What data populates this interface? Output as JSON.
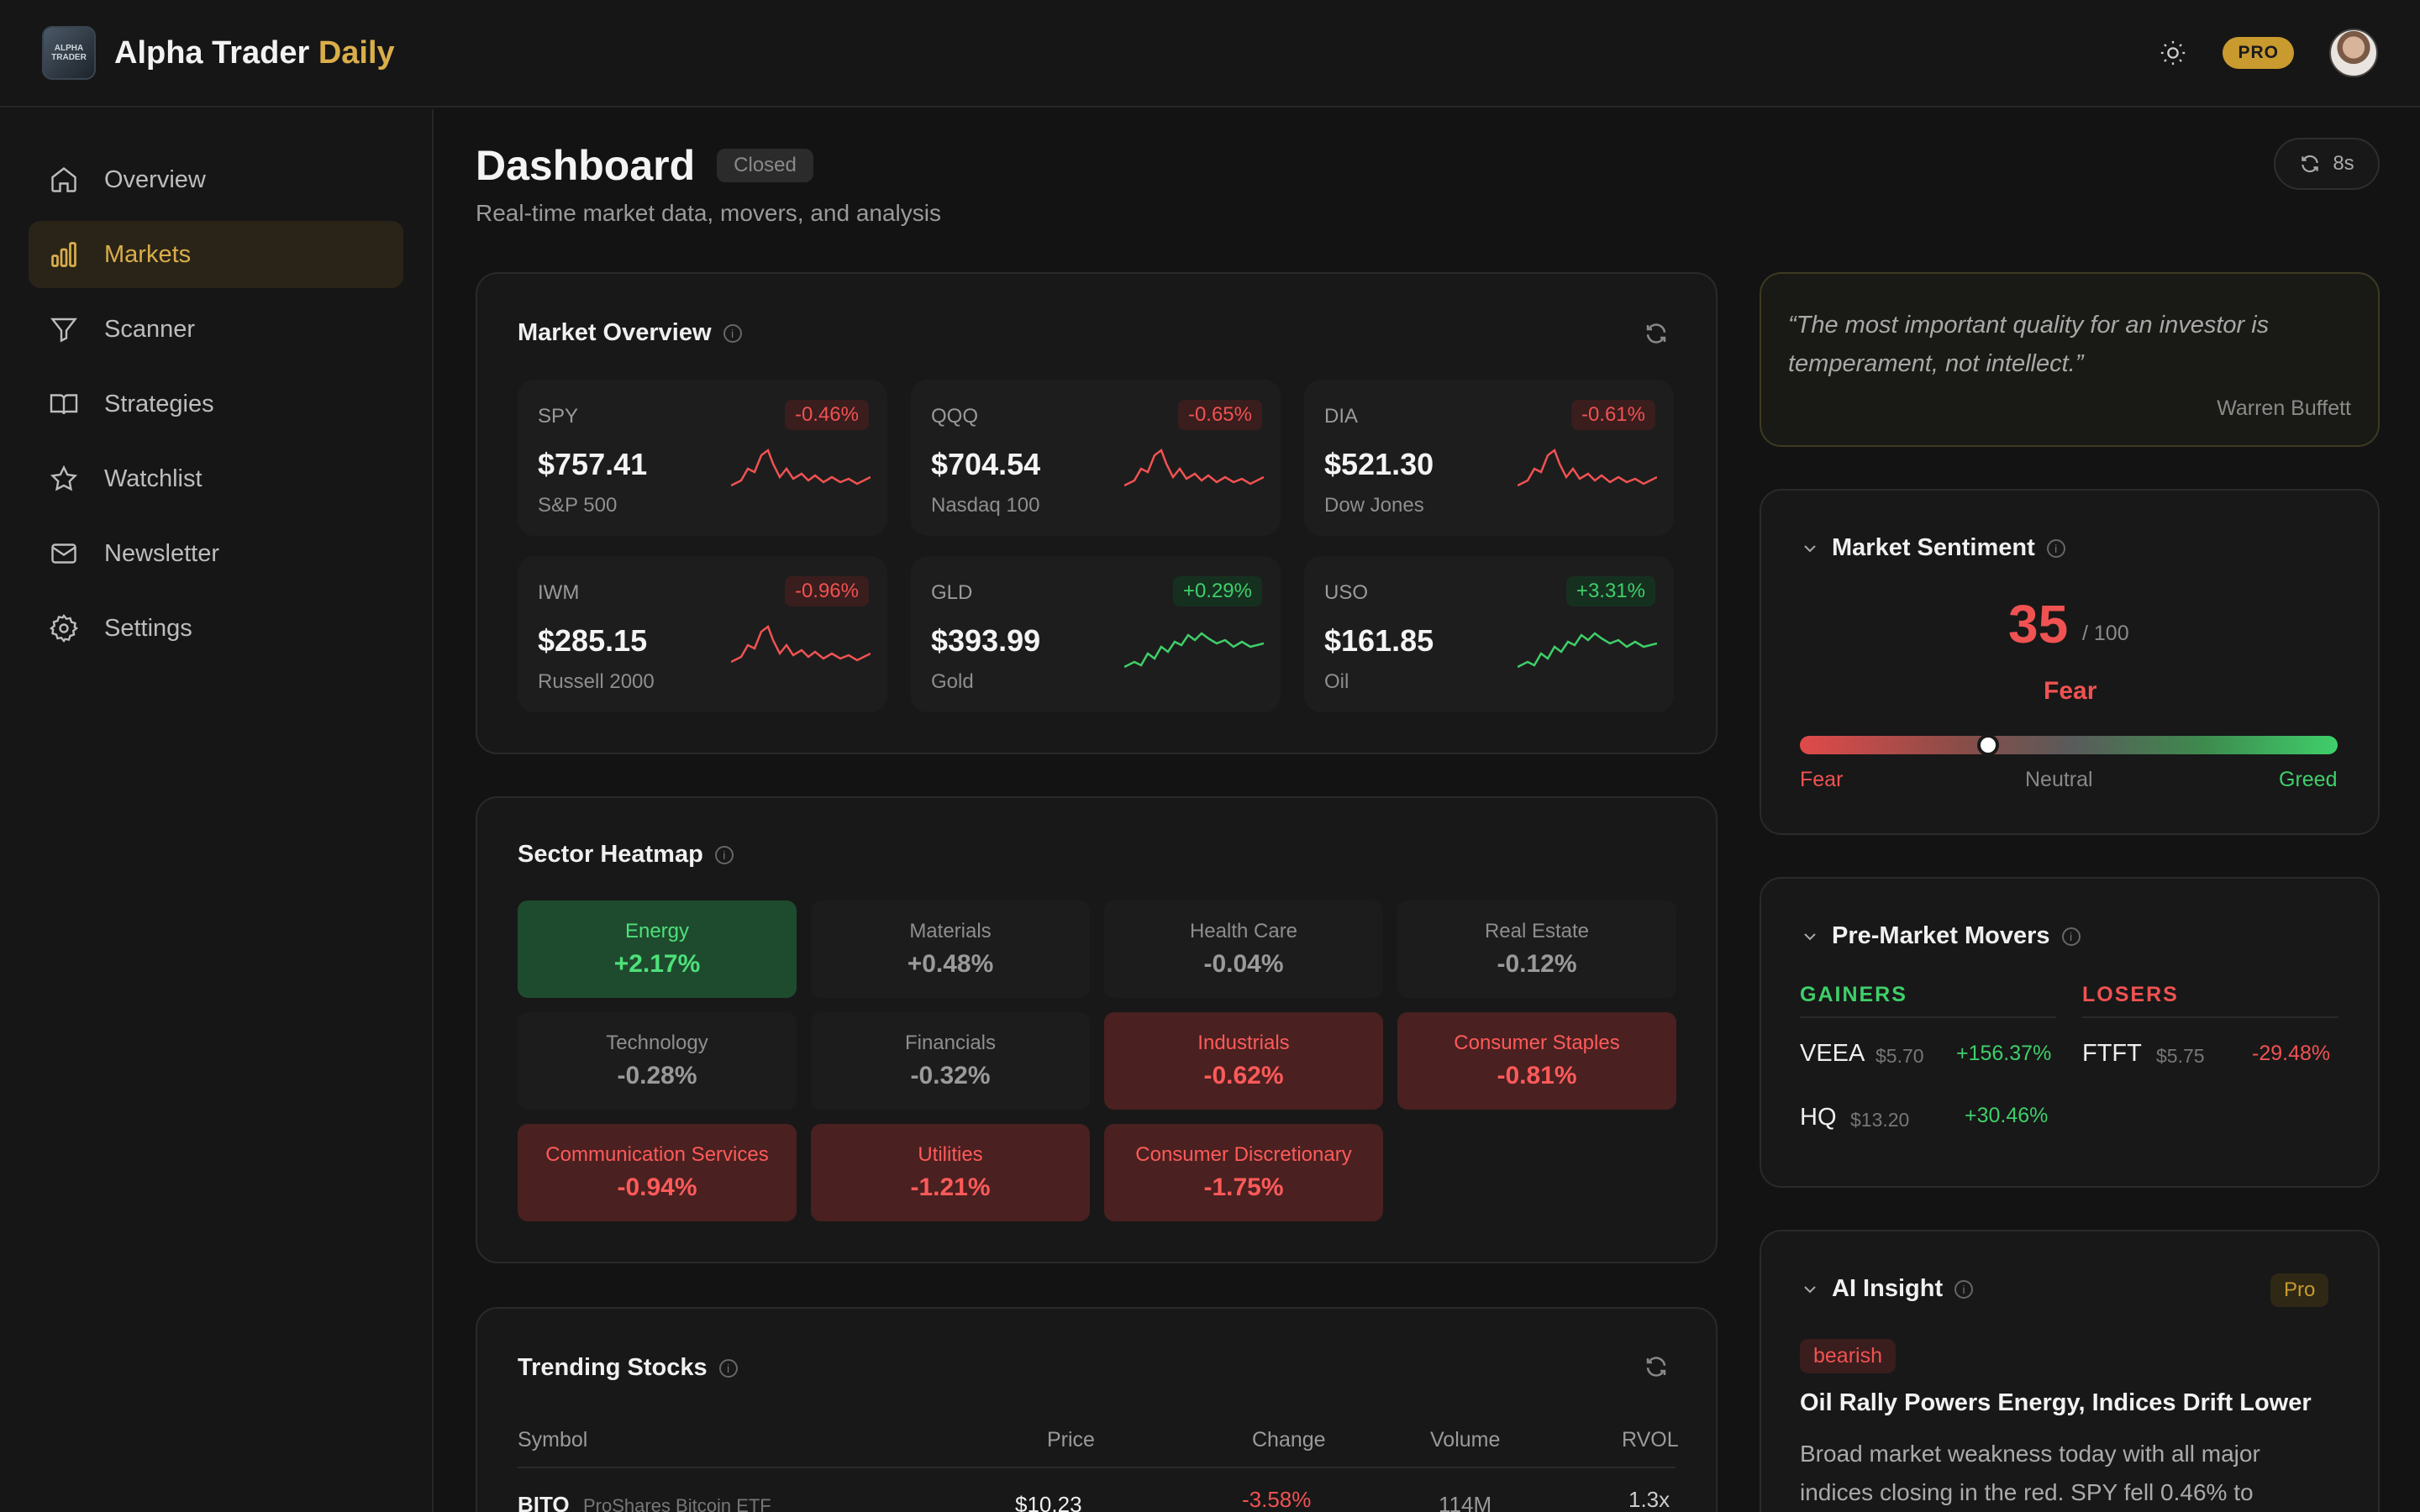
{
  "header": {
    "logo_text": "ALPHA TRADER",
    "brand_main": "Alpha Trader",
    "brand_accent": "Daily",
    "pro_label": "PRO"
  },
  "sidebar": {
    "items": [
      {
        "label": "Overview",
        "icon": "home-icon",
        "active": false
      },
      {
        "label": "Markets",
        "icon": "bar-chart-icon",
        "active": true
      },
      {
        "label": "Scanner",
        "icon": "filter-icon",
        "active": false
      },
      {
        "label": "Strategies",
        "icon": "book-icon",
        "active": false
      },
      {
        "label": "Watchlist",
        "icon": "star-icon",
        "active": false
      },
      {
        "label": "Newsletter",
        "icon": "mail-icon",
        "active": false
      },
      {
        "label": "Settings",
        "icon": "gear-icon",
        "active": false
      }
    ]
  },
  "page": {
    "title": "Dashboard",
    "status": "Closed",
    "subtitle": "Real-time market data, movers, and analysis",
    "refresh_countdown": "8s"
  },
  "market_overview": {
    "title": "Market Overview",
    "tiles": [
      {
        "symbol": "SPY",
        "price": "$757.41",
        "name": "S&P 500",
        "change": "-0.46%",
        "direction": "neg"
      },
      {
        "symbol": "QQQ",
        "price": "$704.54",
        "name": "Nasdaq 100",
        "change": "-0.65%",
        "direction": "neg"
      },
      {
        "symbol": "DIA",
        "price": "$521.30",
        "name": "Dow Jones",
        "change": "-0.61%",
        "direction": "neg"
      },
      {
        "symbol": "IWM",
        "price": "$285.15",
        "name": "Russell 2000",
        "change": "-0.96%",
        "direction": "neg"
      },
      {
        "symbol": "GLD",
        "price": "$393.99",
        "name": "Gold",
        "change": "+0.29%",
        "direction": "pos"
      },
      {
        "symbol": "USO",
        "price": "$161.85",
        "name": "Oil",
        "change": "+3.31%",
        "direction": "pos"
      }
    ]
  },
  "sector_heatmap": {
    "title": "Sector Heatmap",
    "sectors": [
      {
        "name": "Energy",
        "change": "+2.17%",
        "tone": "green"
      },
      {
        "name": "Materials",
        "change": "+0.48%",
        "tone": "neutral"
      },
      {
        "name": "Health Care",
        "change": "-0.04%",
        "tone": "neutral"
      },
      {
        "name": "Real Estate",
        "change": "-0.12%",
        "tone": "neutral"
      },
      {
        "name": "Technology",
        "change": "-0.28%",
        "tone": "neutral"
      },
      {
        "name": "Financials",
        "change": "-0.32%",
        "tone": "neutral"
      },
      {
        "name": "Industrials",
        "change": "-0.62%",
        "tone": "red"
      },
      {
        "name": "Consumer Staples",
        "change": "-0.81%",
        "tone": "red"
      },
      {
        "name": "Communication Services",
        "change": "-0.94%",
        "tone": "red"
      },
      {
        "name": "Utilities",
        "change": "-1.21%",
        "tone": "red"
      },
      {
        "name": "Consumer Discretionary",
        "change": "-1.75%",
        "tone": "red"
      }
    ]
  },
  "trending": {
    "title": "Trending Stocks",
    "columns": {
      "symbol": "Symbol",
      "price": "Price",
      "change": "Change",
      "volume": "Volume",
      "rvol": "RVOL"
    },
    "rows": [
      {
        "symbol": "BITO",
        "name": "ProShares Bitcoin ETF",
        "price": "$10.23",
        "change": "-3.58%",
        "volume": "114M",
        "rvol": "1.3x"
      }
    ]
  },
  "quote": {
    "text": "“The most important quality for an investor is temperament, not intellect.”",
    "author": "Warren Buffett"
  },
  "sentiment": {
    "title": "Market Sentiment",
    "value": "35",
    "max_label": "/ 100",
    "label": "Fear",
    "level_fraction": 0.35,
    "scale_left": "Fear",
    "scale_mid": "Neutral",
    "scale_right": "Greed"
  },
  "premarket": {
    "title": "Pre-Market Movers",
    "gainers_label": "GAINERS",
    "losers_label": "LOSERS",
    "gainers": [
      {
        "symbol": "VEEA",
        "price": "$5.70",
        "change": "+156.37%"
      },
      {
        "symbol": "HQ",
        "price": "$13.20",
        "change": "+30.46%"
      }
    ],
    "losers": [
      {
        "symbol": "FTFT",
        "price": "$5.75",
        "change": "-29.48%"
      }
    ]
  },
  "ai_insight": {
    "title": "AI Insight",
    "tier": "Pro",
    "tag": "bearish",
    "headline": "Oil Rally Powers Energy, Indices Drift Lower",
    "body": "Broad market weakness today with all major indices closing in the red. SPY fell 0.46% to"
  },
  "colors": {
    "accent": "#d9ae4b",
    "negative": "#f05252",
    "positive": "#3fcf6a"
  }
}
